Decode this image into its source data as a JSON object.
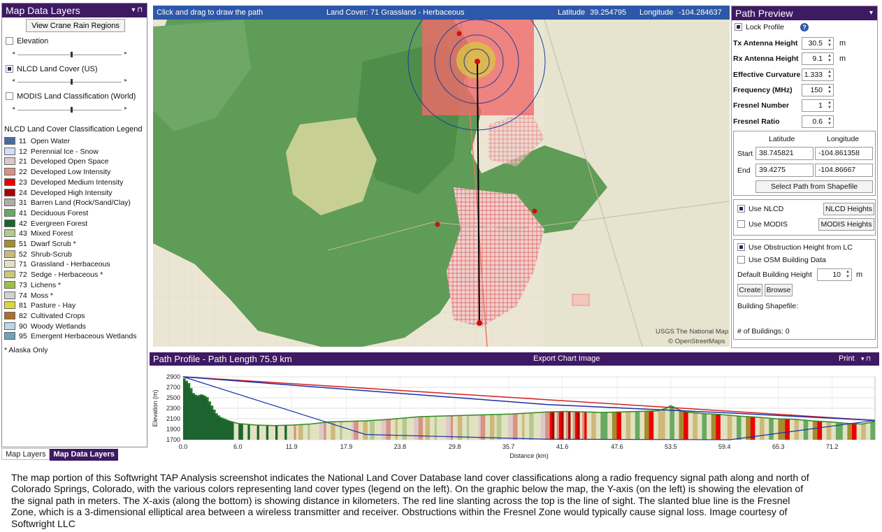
{
  "left_panel": {
    "title": "Map Data Layers",
    "title_controls": "▾  ⊓",
    "view_crane_button": "View Crane Rain Regions",
    "layers": [
      {
        "label": "Elevation",
        "checked": false
      },
      {
        "label": "NLCD Land Cover (US)",
        "checked": true
      },
      {
        "label": "MODIS Land Classification (World)",
        "checked": false
      }
    ],
    "legend_title": "NLCD Land Cover Classification Legend",
    "legend": [
      {
        "code": "11",
        "label": "Open Water",
        "color": "#476ba0"
      },
      {
        "code": "12",
        "label": "Perennial Ice - Snow",
        "color": "#d1ddf9"
      },
      {
        "code": "21",
        "label": "Developed Open Space",
        "color": "#ddc9c9"
      },
      {
        "code": "22",
        "label": "Developed Low Intensity",
        "color": "#d89382"
      },
      {
        "code": "23",
        "label": "Developed Medium Intensity",
        "color": "#ed0000"
      },
      {
        "code": "24",
        "label": "Developed High Intensity",
        "color": "#aa0000"
      },
      {
        "code": "31",
        "label": "Barren Land (Rock/Sand/Clay)",
        "color": "#b2ada3"
      },
      {
        "code": "41",
        "label": "Deciduous Forest",
        "color": "#68aa63"
      },
      {
        "code": "42",
        "label": "Evergreen Forest",
        "color": "#1c6330"
      },
      {
        "code": "43",
        "label": "Mixed Forest",
        "color": "#b5c98e"
      },
      {
        "code": "51",
        "label": "Dwarf Scrub *",
        "color": "#a58c30"
      },
      {
        "code": "52",
        "label": "Shrub-Scrub",
        "color": "#ccba7c"
      },
      {
        "code": "71",
        "label": "Grassland - Herbaceous",
        "color": "#e2e2c1"
      },
      {
        "code": "72",
        "label": "Sedge - Herbaceous *",
        "color": "#c9c977"
      },
      {
        "code": "73",
        "label": "Lichens *",
        "color": "#99c147"
      },
      {
        "code": "74",
        "label": "Moss *",
        "color": "#d3d3d3"
      },
      {
        "code": "81",
        "label": "Pasture - Hay",
        "color": "#dbd83d"
      },
      {
        "code": "82",
        "label": "Cultivated Crops",
        "color": "#aa7028"
      },
      {
        "code": "90",
        "label": "Woody Wetlands",
        "color": "#bad8ea"
      },
      {
        "code": "95",
        "label": "Emergent Herbaceous Wetlands",
        "color": "#70a3ba"
      }
    ],
    "alaska_note": "* Alaska Only"
  },
  "tabs": [
    "Map Layers",
    "Map Data Layers"
  ],
  "map_header": {
    "instruction": "Click and drag to draw the path",
    "land_cover": "Land Cover: 71 Grassland - Herbaceous",
    "lat_label": "Latitude",
    "lat_value": "39.254795",
    "lon_label": "Longitude",
    "lon_value": "-104.284637"
  },
  "map": {
    "attribution_1": "USGS The National Map",
    "attribution_2": "© OpenStreetMaps"
  },
  "preview": {
    "title": "Path Preview",
    "title_control": "▾",
    "lock_profile": "Lock Profile",
    "help": "?",
    "fields": [
      {
        "label": "Tx Antenna Height",
        "value": "30.5",
        "unit": "m"
      },
      {
        "label": "Rx Antenna Height",
        "value": "9.1",
        "unit": "m"
      },
      {
        "label": "Effective Curvature",
        "value": "1.333",
        "unit": ""
      },
      {
        "label": "Frequency (MHz)",
        "value": "150",
        "unit": ""
      },
      {
        "label": "Fresnel Number",
        "value": "1",
        "unit": ""
      },
      {
        "label": "Fresnel Ratio",
        "value": "0.6",
        "unit": ""
      }
    ],
    "coords": {
      "lat_header": "Latitude",
      "lon_header": "Longitude",
      "start_label": "Start",
      "start_lat": "38.745821",
      "start_lon": "-104.861358",
      "end_label": "End",
      "end_lat": "39.4275",
      "end_lon": "-104.86667",
      "shapefile_button": "Select Path from Shapefile"
    },
    "source": {
      "use_nlcd": "Use NLCD",
      "nlcd_heights": "NLCD Heights",
      "use_modis": "Use MODIS",
      "modis_heights": "MODIS Heights"
    },
    "buildings": {
      "use_obstruction": "Use Obstruction Height from LC",
      "use_osm": "Use OSM Building Data",
      "default_height_label": "Default Building Height",
      "default_height_value": "10",
      "default_height_unit": "m",
      "create": "Create",
      "browse": "Browse",
      "shapefile_label": "Building Shapefile:",
      "count_label": "# of Buildings:",
      "count_value": "0"
    }
  },
  "profile_header": {
    "title": "Path Profile - Path Length 75.9 km",
    "export": "Export Chart Image",
    "print": "Print",
    "controls": "▾  ⊓"
  },
  "chart_data": {
    "type": "area",
    "title": "Path Profile - Path Length 75.9 km",
    "xlabel": "Distance (km)",
    "ylabel": "Elevation (m)",
    "xlim": [
      0,
      75.9
    ],
    "ylim": [
      1700,
      2900
    ],
    "x_ticks": [
      "0.0",
      "6.0",
      "11.9",
      "17.9",
      "23.8",
      "29.8",
      "35.7",
      "41.6",
      "47.6",
      "53.5",
      "59.4",
      "65.3",
      "71.2"
    ],
    "y_ticks": [
      "2900",
      "2700",
      "2500",
      "2300",
      "2100",
      "1900",
      "1700"
    ],
    "grid": true,
    "terrain": [
      [
        0,
        2870
      ],
      [
        0.5,
        2780
      ],
      [
        1,
        2590
      ],
      [
        1.5,
        2530
      ],
      [
        2,
        2560
      ],
      [
        2.5,
        2520
      ],
      [
        3,
        2360
      ],
      [
        3.5,
        2210
      ],
      [
        4,
        2130
      ],
      [
        5,
        2060
      ],
      [
        6,
        2010
      ],
      [
        8,
        1980
      ],
      [
        10,
        1970
      ],
      [
        12,
        1980
      ],
      [
        14,
        2000
      ],
      [
        16,
        2040
      ],
      [
        18,
        2050
      ],
      [
        20,
        2060
      ],
      [
        22,
        2080
      ],
      [
        24,
        2110
      ],
      [
        26,
        2140
      ],
      [
        28,
        2150
      ],
      [
        30,
        2160
      ],
      [
        32,
        2170
      ],
      [
        34,
        2180
      ],
      [
        36,
        2190
      ],
      [
        38,
        2210
      ],
      [
        40,
        2230
      ],
      [
        42,
        2240
      ],
      [
        44,
        2230
      ],
      [
        46,
        2220
      ],
      [
        48,
        2230
      ],
      [
        50,
        2240
      ],
      [
        52,
        2250
      ],
      [
        53,
        2300
      ],
      [
        53.5,
        2350
      ],
      [
        54,
        2300
      ],
      [
        55,
        2230
      ],
      [
        57,
        2200
      ],
      [
        59,
        2180
      ],
      [
        61,
        2150
      ],
      [
        63,
        2130
      ],
      [
        65,
        2100
      ],
      [
        67,
        2090
      ],
      [
        69,
        2060
      ],
      [
        71,
        2040
      ],
      [
        73,
        2010
      ],
      [
        74.5,
        2000
      ],
      [
        75.5,
        2030
      ],
      [
        75.9,
        2060
      ]
    ],
    "line_of_sight": [
      [
        0,
        2900
      ],
      [
        75.9,
        2069
      ]
    ],
    "fresnel_upper": [
      [
        0,
        2900
      ],
      [
        40,
        2370
      ],
      [
        60,
        2210
      ],
      [
        75.9,
        2069
      ]
    ],
    "fresnel_lower": [
      [
        0,
        2900
      ],
      [
        20,
        1800
      ],
      [
        40,
        1710
      ],
      [
        60,
        1700
      ],
      [
        75.9,
        2069
      ]
    ]
  },
  "caption": "The map portion of this Softwright TAP Analysis screenshot indicates the National Land Cover Database land cover classifications along a radio frequency signal path along and north of Colorado Springs, Colorado, with the various colors representing land cover types (legend on the left). On the graphic below the map, the Y-axis (on the left) is showing the elevation of the signal path in meters.  The X-axis (along the bottom) is showing distance in kilometers.  The red line slanting across the top is the line of sight. The slanted blue line is the Fresnel Zone, which is a 3-dimensional elliptical area between a wireless transmitter and receiver. Obstructions within the Fresnel Zone would typically cause signal loss. Image courtesy of Softwright LLC"
}
